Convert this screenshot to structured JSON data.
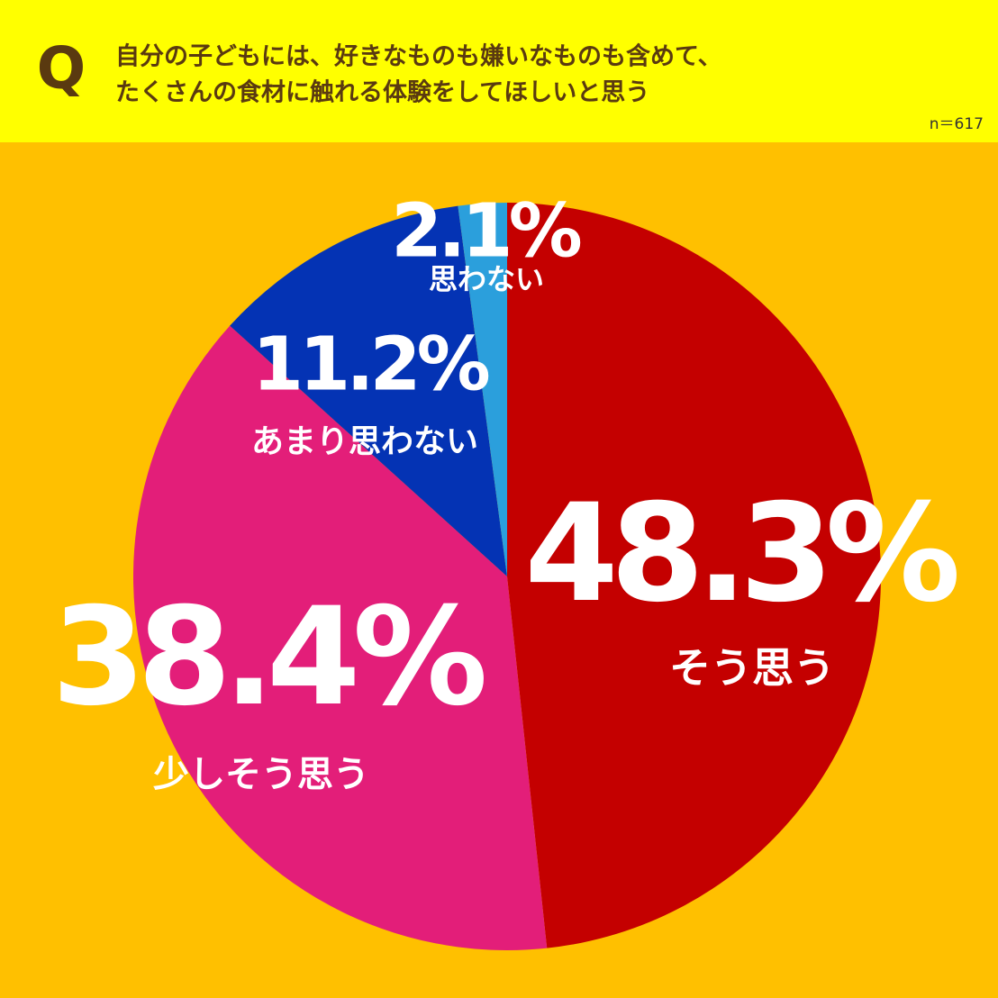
{
  "chart_data": {
    "type": "pie",
    "question_mark": "Q",
    "title": [
      "自分の子どもには、好きなものも嫌いなものも含めて、",
      "たくさんの食材に触れる体験をしてほしいと思う"
    ],
    "note": "n＝617",
    "categories": [
      "そう思う",
      "少しそう思う",
      "あまり思わない",
      "思わない"
    ],
    "values": [
      48.3,
      38.4,
      11.2,
      2.1
    ],
    "value_labels": [
      "48.3%",
      "38.4%",
      "11.2%",
      "2.1%"
    ],
    "colors": [
      "#c40000",
      "#e31e79",
      "#0433b4",
      "#2b9fdc"
    ]
  }
}
